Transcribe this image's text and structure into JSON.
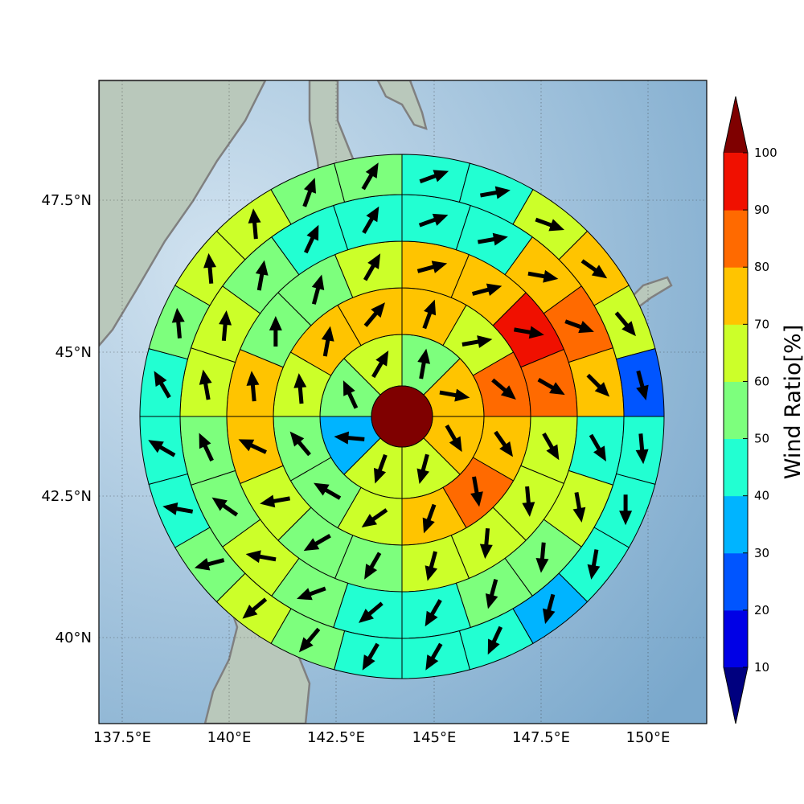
{
  "map": {
    "lon_ticks": [
      "137.5°E",
      "140°E",
      "142.5°E",
      "145°E",
      "147.5°E",
      "150°E"
    ],
    "lat_ticks": [
      "47.5°N",
      "45°N",
      "42.5°N",
      "40°N"
    ],
    "colors": {
      "sea_light": "#d2e3f0",
      "sea_dark": "#7aa8cc",
      "land": "#b9c8bb",
      "coast": "#808080"
    }
  },
  "colorbar": {
    "title": "Wind Ratio[%]",
    "ticks": [
      "10",
      "20",
      "30",
      "40",
      "50",
      "60",
      "70",
      "80",
      "90",
      "100"
    ],
    "levels": [
      0,
      10,
      20,
      30,
      40,
      50,
      60,
      70,
      80,
      90,
      100,
      110
    ],
    "colors": [
      "#00007f",
      "#0000e6",
      "#0055ff",
      "#00b4ff",
      "#22ffd2",
      "#7dff7d",
      "#ccff29",
      "#ffc400",
      "#ff6a00",
      "#f01000",
      "#7f0000"
    ]
  },
  "chart_data": {
    "type": "polar_sector_map",
    "center_value": 100,
    "rings": [
      {
        "ring": 1,
        "sectors": 8,
        "values": [
          58,
          72,
          72,
          62,
          62,
          35,
          52,
          62
        ],
        "arrows": [
          10,
          100,
          150,
          195,
          200,
          275,
          335,
          30
        ]
      },
      {
        "ring": 2,
        "sectors": 12,
        "values": [
          72,
          62,
          85,
          70,
          82,
          72,
          62,
          52,
          52,
          62,
          72,
          72
        ],
        "arrows": [
          20,
          80,
          130,
          145,
          170,
          200,
          235,
          300,
          320,
          355,
          10,
          40
        ]
      },
      {
        "ring": 3,
        "sectors": 16,
        "values": [
          72,
          72,
          95,
          85,
          62,
          62,
          62,
          62,
          52,
          52,
          62,
          72,
          72,
          52,
          52,
          62
        ],
        "arrows": [
          75,
          75,
          100,
          120,
          150,
          175,
          185,
          195,
          210,
          240,
          260,
          295,
          355,
          0,
          15,
          30
        ]
      },
      {
        "ring": 4,
        "sectors": 20,
        "values": [
          45,
          45,
          72,
          85,
          72,
          45,
          62,
          52,
          52,
          45,
          45,
          52,
          62,
          52,
          52,
          62,
          62,
          52,
          45,
          45
        ],
        "arrows": [
          70,
          80,
          100,
          110,
          135,
          150,
          170,
          185,
          195,
          210,
          230,
          250,
          280,
          305,
          335,
          350,
          5,
          10,
          25,
          30
        ]
      },
      {
        "ring": 5,
        "sectors": 24,
        "values": [
          45,
          45,
          62,
          72,
          62,
          25,
          45,
          45,
          45,
          35,
          45,
          45,
          45,
          52,
          62,
          52,
          45,
          45,
          45,
          52,
          62,
          62,
          52,
          52
        ],
        "arrows": [
          70,
          80,
          110,
          125,
          140,
          165,
          175,
          180,
          190,
          195,
          205,
          210,
          210,
          220,
          230,
          255,
          280,
          300,
          330,
          355,
          355,
          355,
          20,
          30
        ]
      }
    ]
  }
}
